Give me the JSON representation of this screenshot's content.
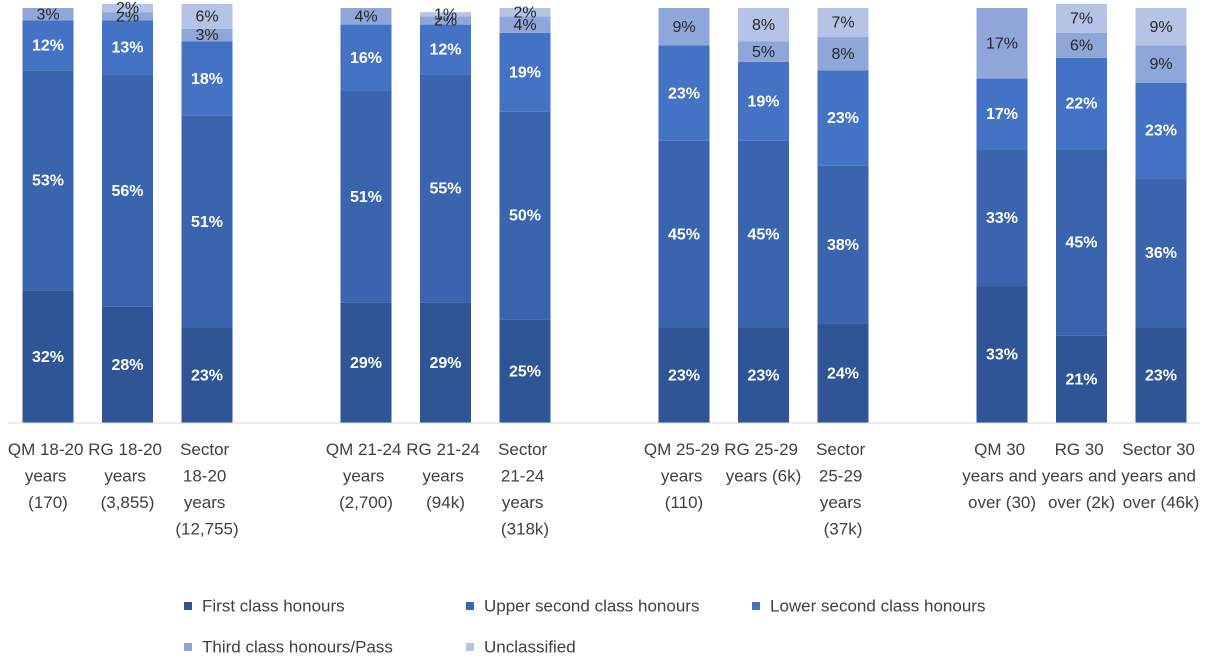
{
  "chart_data": {
    "type": "stacked_bar",
    "categories": [
      "QM 18-20 years (170)",
      "RG 18-20 years (3,855)",
      "Sector 18-20 years (12,755)",
      "QM 21-24 years (2,700)",
      "RG 21-24 years (94k)",
      "Sector 21-24 years (318k)",
      "QM 25-29 years (110)",
      "RG 25-29 years (6k)",
      "Sector 25-29 years (37k)",
      "QM 30 years and over (30)",
      "RG 30 years and over (2k)",
      "Sector 30 years and over (46k)"
    ],
    "ylim": [
      0,
      100
    ],
    "series": [
      {
        "name": "First class honours",
        "color": "#2f5597",
        "values": [
          32,
          28,
          23,
          29,
          29,
          25,
          23,
          23,
          24,
          33,
          21,
          23
        ],
        "value_labels": [
          "32%",
          "28%",
          "23%",
          "29%",
          "29%",
          "25%",
          "23%",
          "23%",
          "24%",
          "33%",
          "21%",
          "23%"
        ]
      },
      {
        "name": "Upper second class honours",
        "color": "#3a64ae",
        "values": [
          53,
          56,
          51,
          51,
          55,
          50,
          45,
          45,
          38,
          33,
          45,
          36
        ],
        "value_labels": [
          "53%",
          "56%",
          "51%",
          "51%",
          "55%",
          "50%",
          "45%",
          "45%",
          "38%",
          "33%",
          "45%",
          "36%"
        ]
      },
      {
        "name": "Lower second class honours",
        "color": "#4472c4",
        "values": [
          12,
          13,
          18,
          16,
          12,
          19,
          23,
          19,
          23,
          17,
          22,
          23
        ],
        "value_labels": [
          "12%",
          "13%",
          "18%",
          "16%",
          "12%",
          "19%",
          "23%",
          "19%",
          "23%",
          "17%",
          "22%",
          "23%"
        ]
      },
      {
        "name": "Third class honours/Pass",
        "color": "#8fa6d9",
        "values": [
          3,
          2,
          3,
          4,
          2,
          4,
          9,
          5,
          8,
          17,
          6,
          9
        ],
        "value_labels": [
          "3%",
          "2%",
          "3%",
          "4%",
          "2%",
          "4%",
          "9%",
          "5%",
          "8%",
          "17%",
          "6%",
          "9%"
        ]
      },
      {
        "name": "Unclassified",
        "color": "#b4c3e6",
        "values": [
          0,
          2,
          6,
          0,
          1,
          2,
          0,
          8,
          7,
          0,
          7,
          9
        ],
        "value_labels": [
          null,
          "2%",
          "6%",
          null,
          "1%",
          "2%",
          null,
          "8%",
          "7%",
          null,
          "7%",
          "9%"
        ]
      }
    ]
  }
}
